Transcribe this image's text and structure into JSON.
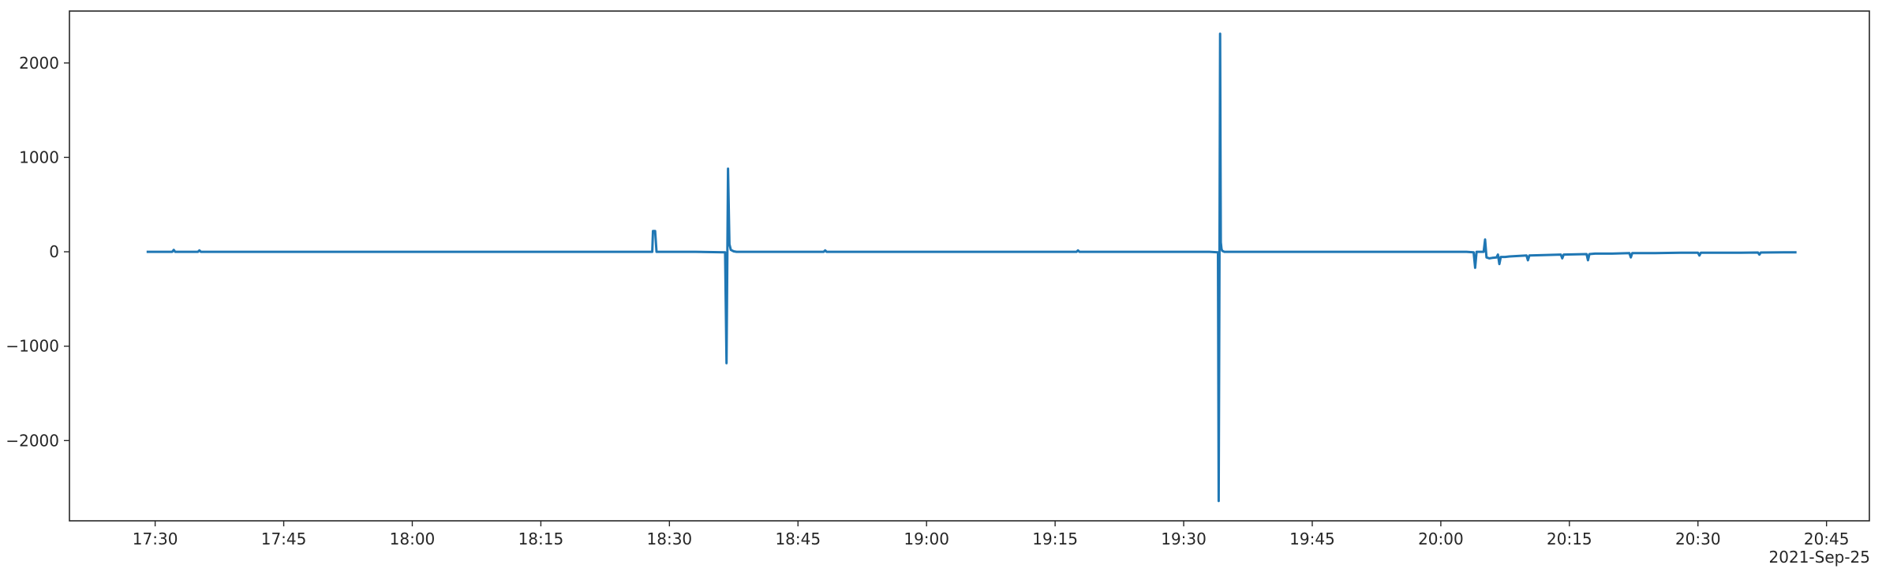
{
  "chart_data": {
    "type": "line",
    "title": "",
    "xlabel": "",
    "ylabel": "",
    "x_axis_offset_label": "2021-Sep-25",
    "xlim": [
      "17:20",
      "20:50"
    ],
    "ylim": [
      -2850,
      2550
    ],
    "x_ticks": [
      "17:30",
      "17:45",
      "18:00",
      "18:15",
      "18:30",
      "18:45",
      "19:00",
      "19:15",
      "19:30",
      "19:45",
      "20:00",
      "20:15",
      "20:30",
      "20:45"
    ],
    "y_ticks": [
      {
        "value": 2000,
        "label": "2000"
      },
      {
        "value": 1000,
        "label": "1000"
      },
      {
        "value": 0,
        "label": "0"
      },
      {
        "value": -1000,
        "label": "−1000"
      },
      {
        "value": -2000,
        "label": "−2000"
      }
    ],
    "grid": false,
    "series": [
      {
        "color": "#1f77b4",
        "x": [
          "17:29:00",
          "17:32:00",
          "17:32:10",
          "17:32:20",
          "17:35:00",
          "17:35:10",
          "17:35:20",
          "17:40:00",
          "17:45:00",
          "17:50:00",
          "17:55:00",
          "18:00:00",
          "18:05:00",
          "18:10:00",
          "18:15:00",
          "18:20:00",
          "18:25:00",
          "18:28:00",
          "18:28:05",
          "18:28:20",
          "18:28:30",
          "18:33:00",
          "18:36:30",
          "18:36:40",
          "18:36:50",
          "18:37:00",
          "18:37:10",
          "18:37:30",
          "18:37:50",
          "18:38:20",
          "18:40:00",
          "18:45:00",
          "18:48:00",
          "18:48:10",
          "18:48:20",
          "18:55:00",
          "19:00:00",
          "19:05:00",
          "19:10:00",
          "19:15:00",
          "19:17:30",
          "19:17:40",
          "19:17:50",
          "19:20:00",
          "19:25:00",
          "19:30:00",
          "19:33:00",
          "19:34:00",
          "19:34:05",
          "19:34:10",
          "19:34:15",
          "19:34:20",
          "19:34:25",
          "19:34:30",
          "19:34:45",
          "19:35:00",
          "19:35:30",
          "19:37:00",
          "19:40:00",
          "19:45:00",
          "19:50:00",
          "19:55:00",
          "20:00:00",
          "20:03:00",
          "20:03:50",
          "20:04:00",
          "20:04:10",
          "20:05:00",
          "20:05:10",
          "20:05:20",
          "20:05:40",
          "20:06:00",
          "20:06:30",
          "20:06:40",
          "20:06:50",
          "20:07:00",
          "20:07:30",
          "20:08:00",
          "20:10:00",
          "20:10:10",
          "20:10:20",
          "20:12:00",
          "20:14:00",
          "20:14:10",
          "20:14:20",
          "20:17:00",
          "20:17:10",
          "20:17:20",
          "20:18:00",
          "20:20:00",
          "20:22:00",
          "20:22:10",
          "20:22:20",
          "20:25:00",
          "20:28:00",
          "20:30:00",
          "20:30:10",
          "20:30:20",
          "20:35:00",
          "20:37:00",
          "20:37:10",
          "20:37:20",
          "20:40:00",
          "20:41:30"
        ],
        "y": [
          0,
          0,
          20,
          0,
          0,
          15,
          0,
          0,
          0,
          0,
          0,
          0,
          0,
          0,
          0,
          0,
          0,
          0,
          220,
          220,
          0,
          0,
          -5,
          -1180,
          880,
          80,
          20,
          5,
          0,
          0,
          0,
          0,
          0,
          15,
          0,
          0,
          0,
          0,
          0,
          0,
          0,
          15,
          0,
          0,
          0,
          0,
          0,
          -5,
          -2640,
          -400,
          2310,
          100,
          30,
          10,
          0,
          0,
          0,
          0,
          0,
          0,
          0,
          0,
          0,
          0,
          -5,
          -170,
          0,
          0,
          130,
          -60,
          -70,
          -65,
          -60,
          -30,
          -130,
          -55,
          -55,
          -50,
          -40,
          -90,
          -40,
          -35,
          -30,
          -70,
          -30,
          -25,
          -90,
          -25,
          -20,
          -20,
          -15,
          -60,
          -15,
          -15,
          -10,
          -10,
          -40,
          -10,
          -10,
          -8,
          -30,
          -8,
          -5,
          -5
        ]
      }
    ]
  }
}
